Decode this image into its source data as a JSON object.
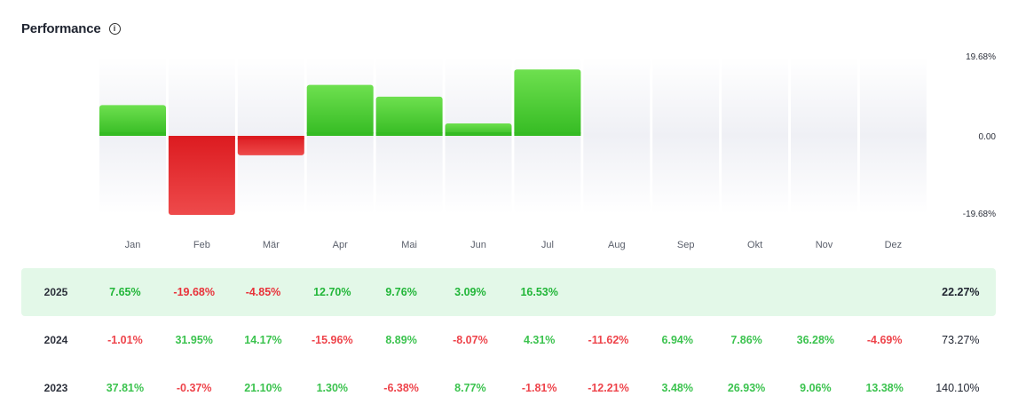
{
  "header": {
    "title": "Performance",
    "info_icon": "info-icon"
  },
  "chart_data": {
    "type": "bar",
    "categories": [
      "Jan",
      "Feb",
      "Mär",
      "Apr",
      "Mai",
      "Jun",
      "Jul",
      "Aug",
      "Sep",
      "Okt",
      "Nov",
      "Dez"
    ],
    "values": [
      7.65,
      -19.68,
      -4.85,
      12.7,
      9.76,
      3.09,
      16.53,
      null,
      null,
      null,
      null,
      null
    ],
    "ylim": [
      -19.68,
      19.68
    ],
    "ytick_labels": [
      "19.68%",
      "0.00",
      "-19.68%"
    ],
    "colors": {
      "positive": "#3ec62f",
      "negative": "#e2262b",
      "track": "#f1f2f6"
    },
    "title": "",
    "xlabel": "",
    "ylabel": ""
  },
  "table": {
    "rows": [
      {
        "year": "2025",
        "current": true,
        "values": [
          "7.65%",
          "-19.68%",
          "-4.85%",
          "12.70%",
          "9.76%",
          "3.09%",
          "16.53%",
          "",
          "",
          "",
          "",
          ""
        ],
        "total": "22.27%"
      },
      {
        "year": "2024",
        "current": false,
        "values": [
          "-1.01%",
          "31.95%",
          "14.17%",
          "-15.96%",
          "8.89%",
          "-8.07%",
          "4.31%",
          "-11.62%",
          "6.94%",
          "7.86%",
          "36.28%",
          "-4.69%"
        ],
        "total": "73.27%"
      },
      {
        "year": "2023",
        "current": false,
        "values": [
          "37.81%",
          "-0.37%",
          "21.10%",
          "1.30%",
          "-6.38%",
          "8.77%",
          "-1.81%",
          "-12.21%",
          "3.48%",
          "26.93%",
          "9.06%",
          "13.38%"
        ],
        "total": "140.10%"
      }
    ]
  }
}
